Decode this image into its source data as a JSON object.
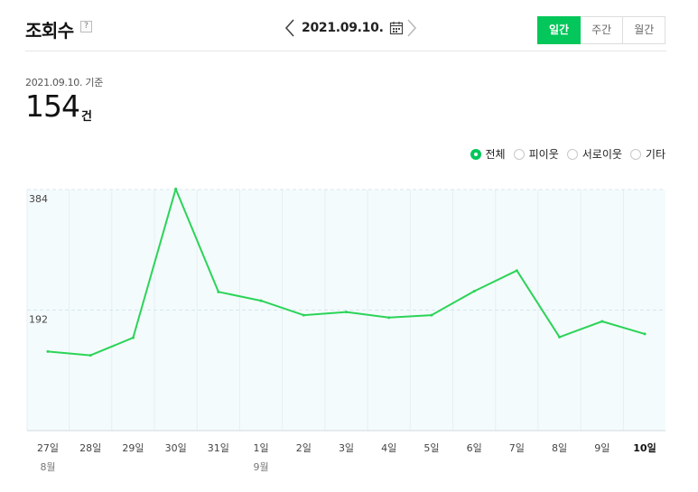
{
  "header": {
    "title": "조회수",
    "help_label": "?",
    "date": "2021.09.10.",
    "tabs": [
      {
        "label": "일간",
        "active": true
      },
      {
        "label": "주간",
        "active": false
      },
      {
        "label": "월간",
        "active": false
      }
    ]
  },
  "summary": {
    "basis": "2021.09.10. 기준",
    "count": "154",
    "unit": "건"
  },
  "legend": [
    {
      "label": "전체",
      "checked": true
    },
    {
      "label": "피이웃",
      "checked": false
    },
    {
      "label": "서로이웃",
      "checked": false
    },
    {
      "label": "기타",
      "checked": false
    }
  ],
  "colors": {
    "accent": "#03c75a",
    "line": "#2bd457",
    "plot_bg": "#f4fbfd"
  },
  "chart_data": {
    "type": "line",
    "categories": [
      "27일",
      "28일",
      "29일",
      "30일",
      "31일",
      "1일",
      "2일",
      "3일",
      "4일",
      "5일",
      "6일",
      "7일",
      "8일",
      "9일",
      "10일"
    ],
    "month_labels": [
      {
        "index": 0,
        "label": "8월"
      },
      {
        "index": 5,
        "label": "9월"
      }
    ],
    "series": [
      {
        "values": [
          126,
          120,
          148,
          385,
          221,
          207,
          184,
          189,
          180,
          184,
          222,
          255,
          149,
          174,
          154
        ]
      }
    ],
    "yticks": [
      192,
      384
    ],
    "ylim": [
      0,
      384
    ],
    "grid": true
  }
}
